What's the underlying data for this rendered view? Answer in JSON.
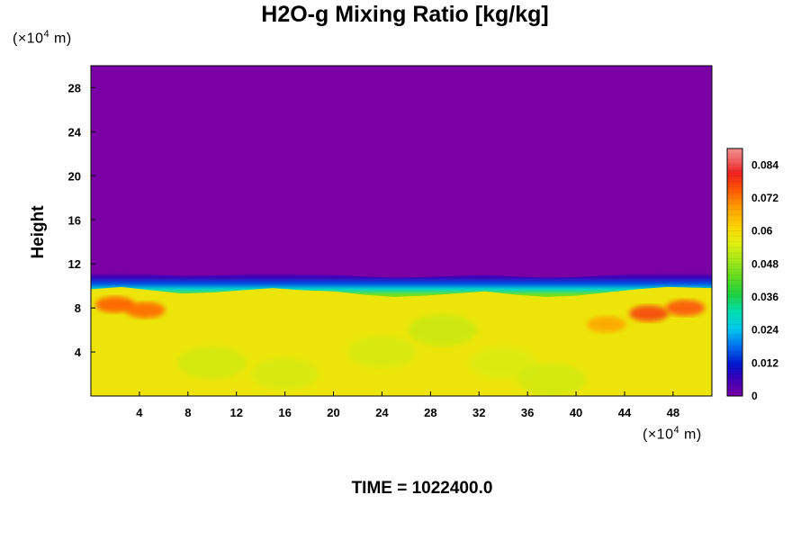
{
  "chart_data": {
    "type": "heatmap",
    "title": "H2O-g Mixing Ratio [kg/kg]",
    "ylabel": "Height",
    "x_unit": {
      "prefix": "(×10",
      "exp": "4",
      "suffix": " m)"
    },
    "y_unit": {
      "prefix": "(×10",
      "exp": "4",
      "suffix": " m)"
    },
    "xlim": [
      0,
      51.2
    ],
    "ylim": [
      0,
      30
    ],
    "x_ticks": [
      "4",
      "8",
      "12",
      "16",
      "20",
      "24",
      "28",
      "32",
      "36",
      "40",
      "44",
      "48"
    ],
    "y_ticks": [
      "4",
      "8",
      "12",
      "16",
      "20",
      "24",
      "28"
    ],
    "colorbar": {
      "range": [
        0,
        0.09
      ],
      "tick_labels": [
        "0",
        "0.012",
        "0.024",
        "0.036",
        "0.048",
        "0.06",
        "0.072",
        "0.084"
      ]
    },
    "field": {
      "lower_layer_value": 0.058,
      "upper_layer_value": 0.0,
      "moist_top_height": [
        9.7,
        9.9,
        9.6,
        9.3,
        9.4,
        9.6,
        9.8,
        9.6,
        9.5,
        9.2,
        9.0,
        9.1,
        9.3,
        9.5,
        9.2,
        9.0,
        9.1,
        9.4,
        9.7,
        9.9,
        9.8
      ],
      "moist_top_x": [
        0,
        2.5,
        5,
        7.5,
        10,
        12.5,
        15,
        17.5,
        20,
        22.5,
        25,
        27.5,
        30,
        32.5,
        35,
        37.5,
        40,
        42.5,
        45,
        47.5,
        51.2
      ],
      "transition_top_height": 11.2,
      "high_value_patches": [
        {
          "x": 2.0,
          "y": 8.3,
          "value": 0.075
        },
        {
          "x": 4.5,
          "y": 7.8,
          "value": 0.074
        },
        {
          "x": 46.0,
          "y": 7.5,
          "value": 0.078
        },
        {
          "x": 49.0,
          "y": 8.0,
          "value": 0.076
        },
        {
          "x": 42.5,
          "y": 6.5,
          "value": 0.068
        }
      ]
    }
  },
  "footer": {
    "time_text": "TIME = 1022400.0"
  }
}
